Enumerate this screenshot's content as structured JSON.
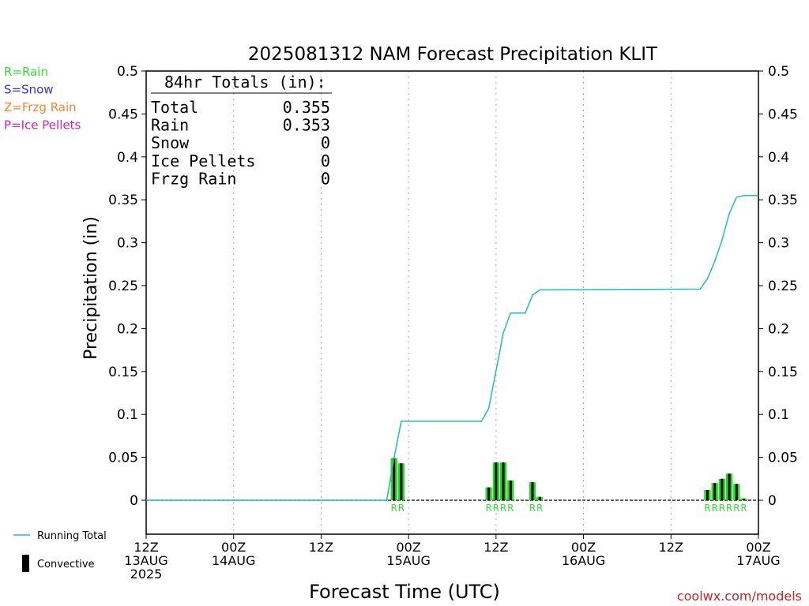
{
  "chart_data": {
    "type": "bar",
    "title": "2025081312 NAM Forecast Precipitation KLIT",
    "ylabel": "Precipitation  (in)",
    "xlabel": "Forecast Time (UTC)",
    "ylim": [
      0,
      0.5
    ],
    "yticks": [
      "0",
      "0.05",
      "0.1",
      "0.15",
      "0.2",
      "0.25",
      "0.3",
      "0.35",
      "0.4",
      "0.45",
      "0.5"
    ],
    "xticks": [
      {
        "hour": 0,
        "lines": [
          "12Z",
          "13AUG",
          "2025"
        ]
      },
      {
        "hour": 12,
        "lines": [
          "00Z",
          "14AUG"
        ]
      },
      {
        "hour": 24,
        "lines": [
          "12Z"
        ]
      },
      {
        "hour": 36,
        "lines": [
          "00Z",
          "15AUG"
        ]
      },
      {
        "hour": 48,
        "lines": [
          "12Z"
        ]
      },
      {
        "hour": 60,
        "lines": [
          "00Z",
          "16AUG"
        ]
      },
      {
        "hour": 72,
        "lines": [
          "12Z"
        ]
      },
      {
        "hour": 84,
        "lines": [
          "00Z",
          "17AUG"
        ]
      }
    ],
    "ptype_legend": [
      {
        "text": "R=Rain",
        "color": "#33dd33"
      },
      {
        "text": "S=Snow",
        "color": "#3333ee"
      },
      {
        "text": "Z=Frzg Rain",
        "color": "#ee8833"
      },
      {
        "text": "P=Ice Pellets",
        "color": "#dd22aa"
      }
    ],
    "totals": {
      "header": "84hr Totals (in):",
      "rows": [
        {
          "label": "Total",
          "value": "0.355"
        },
        {
          "label": "Rain",
          "value": "0.353"
        },
        {
          "label": "Snow",
          "value": "0"
        },
        {
          "label": "Ice Pellets",
          "value": "0"
        },
        {
          "label": "Frzg Rain",
          "value": "0"
        }
      ]
    },
    "series_legend": [
      {
        "text": "Running Total",
        "type": "line",
        "color": "#22bbbb"
      },
      {
        "text": "Convective",
        "type": "bar",
        "color": "#000000"
      }
    ],
    "bars": [
      {
        "hour": 34,
        "total": 0.049,
        "convective": 0.049,
        "ptype": "R"
      },
      {
        "hour": 35,
        "total": 0.043,
        "convective": 0.043,
        "ptype": "R"
      },
      {
        "hour": 47,
        "total": 0.015,
        "convective": 0.015,
        "ptype": "R"
      },
      {
        "hour": 48,
        "total": 0.044,
        "convective": 0.044,
        "ptype": "R"
      },
      {
        "hour": 49,
        "total": 0.044,
        "convective": 0.044,
        "ptype": "R"
      },
      {
        "hour": 50,
        "total": 0.023,
        "convective": 0.023,
        "ptype": "R"
      },
      {
        "hour": 53,
        "total": 0.021,
        "convective": 0.021,
        "ptype": "R"
      },
      {
        "hour": 54,
        "total": 0.004,
        "convective": 0.004,
        "ptype": "R"
      },
      {
        "hour": 77,
        "total": 0.012,
        "convective": 0.012,
        "ptype": "R"
      },
      {
        "hour": 78,
        "total": 0.02,
        "convective": 0.02,
        "ptype": "R"
      },
      {
        "hour": 79,
        "total": 0.025,
        "convective": 0.025,
        "ptype": "R"
      },
      {
        "hour": 80,
        "total": 0.031,
        "convective": 0.031,
        "ptype": "R"
      },
      {
        "hour": 81,
        "total": 0.019,
        "convective": 0.019,
        "ptype": "R"
      },
      {
        "hour": 82,
        "total": 0.002,
        "convective": 0.002,
        "ptype": "R"
      }
    ],
    "running_total": {
      "hours": [
        0,
        33,
        34,
        35,
        46,
        47,
        48,
        49,
        50,
        51,
        52,
        53,
        54,
        76,
        77,
        78,
        79,
        80,
        81,
        82,
        83,
        84
      ],
      "values": [
        0,
        0,
        0.049,
        0.092,
        0.092,
        0.107,
        0.151,
        0.195,
        0.218,
        0.218,
        0.218,
        0.239,
        0.245,
        0.246,
        0.258,
        0.278,
        0.303,
        0.334,
        0.353,
        0.355,
        0.355,
        0.355
      ]
    },
    "credit": "coolwx.com/models"
  }
}
